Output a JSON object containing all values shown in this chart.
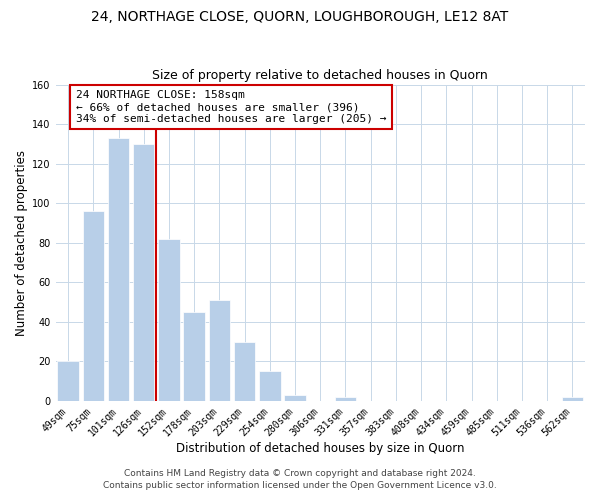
{
  "title": "24, NORTHAGE CLOSE, QUORN, LOUGHBOROUGH, LE12 8AT",
  "subtitle": "Size of property relative to detached houses in Quorn",
  "xlabel": "Distribution of detached houses by size in Quorn",
  "ylabel": "Number of detached properties",
  "bar_labels": [
    "49sqm",
    "75sqm",
    "101sqm",
    "126sqm",
    "152sqm",
    "178sqm",
    "203sqm",
    "229sqm",
    "254sqm",
    "280sqm",
    "306sqm",
    "331sqm",
    "357sqm",
    "383sqm",
    "408sqm",
    "434sqm",
    "459sqm",
    "485sqm",
    "511sqm",
    "536sqm",
    "562sqm"
  ],
  "bar_values": [
    20,
    96,
    133,
    130,
    82,
    45,
    51,
    30,
    15,
    3,
    0,
    2,
    0,
    0,
    0,
    0,
    0,
    0,
    0,
    0,
    2
  ],
  "bar_color": "#b8cfe8",
  "vline_x": 3.5,
  "vline_color": "#cc0000",
  "annotation_text": "24 NORTHAGE CLOSE: 158sqm\n← 66% of detached houses are smaller (396)\n34% of semi-detached houses are larger (205) →",
  "annotation_box_color": "#ffffff",
  "annotation_box_edgecolor": "#cc0000",
  "ylim": [
    0,
    160
  ],
  "yticks": [
    0,
    20,
    40,
    60,
    80,
    100,
    120,
    140,
    160
  ],
  "footer_line1": "Contains HM Land Registry data © Crown copyright and database right 2024.",
  "footer_line2": "Contains public sector information licensed under the Open Government Licence v3.0.",
  "background_color": "#ffffff",
  "grid_color": "#c8d8e8",
  "title_fontsize": 10,
  "subtitle_fontsize": 9,
  "axis_label_fontsize": 8.5,
  "tick_fontsize": 7,
  "annotation_fontsize": 8,
  "footer_fontsize": 6.5
}
